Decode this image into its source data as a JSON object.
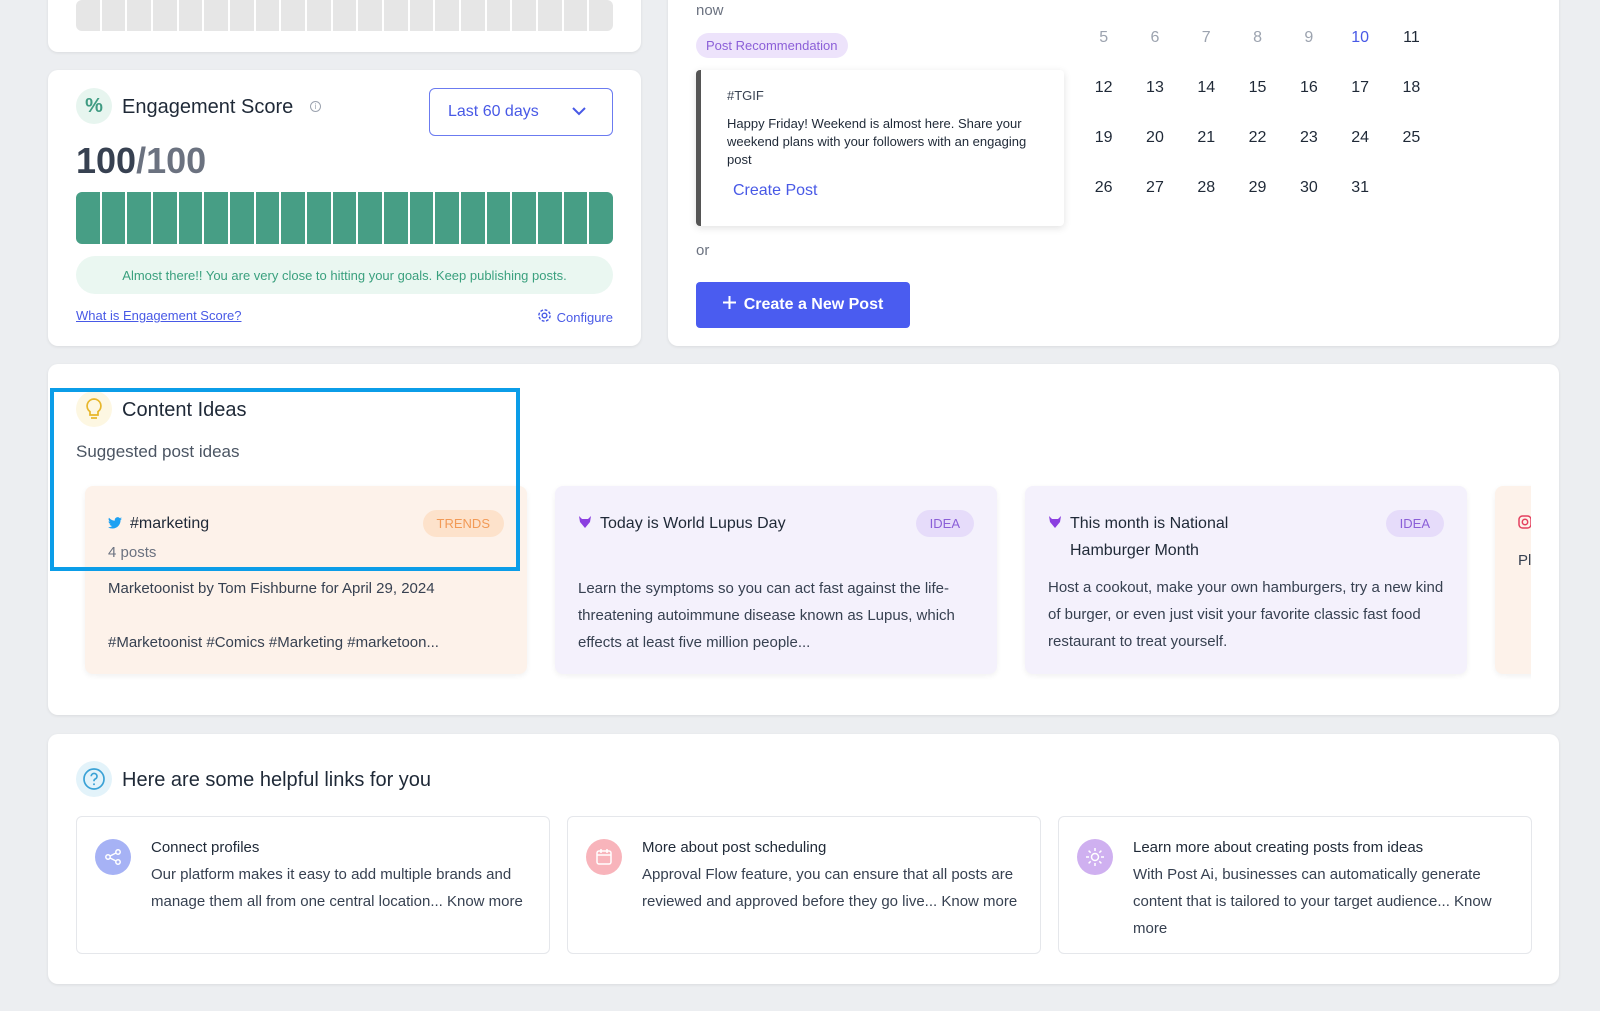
{
  "engagement": {
    "title": "Engagement Score",
    "range": "Last 60 days",
    "score": "100",
    "max": "/100",
    "progress_fraction": 1.0,
    "message": "Almost there!! You are very close to hitting your goals. Keep publishing posts.",
    "link": "What is Engagement Score?",
    "configure": "Configure"
  },
  "recommendation": {
    "time": "now",
    "badge": "Post Recommendation",
    "tag": "#TGIF",
    "text": "Happy Friday! Weekend is almost here. Share your weekend plans with your followers with an engaging post",
    "create": "Create Post",
    "or": "or",
    "new_post": "Create a New Post"
  },
  "calendar": {
    "today": "10",
    "days": [
      "5",
      "6",
      "7",
      "8",
      "9",
      "10",
      "11",
      "12",
      "13",
      "14",
      "15",
      "16",
      "17",
      "18",
      "19",
      "20",
      "21",
      "22",
      "23",
      "24",
      "25",
      "26",
      "27",
      "28",
      "29",
      "30",
      "31"
    ]
  },
  "content_ideas": {
    "title": "Content Ideas",
    "subtitle": "Suggested post ideas",
    "cards": [
      {
        "title": "#marketing",
        "meta": "4 posts",
        "badge": "TRENDS",
        "body1": "Marketoonist by Tom Fishburne for April 29, 2024",
        "body2": "#Marketoonist #Comics #Marketing #marketoon..."
      },
      {
        "title": "Today is World Lupus Day",
        "badge": "IDEA",
        "body": "Learn the symptoms so you can act fast against the life-threatening autoimmune disease known as Lupus, which effects at least five million people..."
      },
      {
        "title": "This month is National Hamburger Month",
        "badge": "IDEA",
        "body": "Host a cookout, make your own hamburgers, try a new kind of burger, or even just visit your favorite classic fast food restaurant to treat yourself."
      },
      {
        "text": "Pl"
      }
    ]
  },
  "helpful_links": {
    "title": "Here are some helpful links for you",
    "items": [
      {
        "title": "Connect profiles",
        "body": "Our platform makes it easy to add multiple brands and manage them all from one central location... Know more"
      },
      {
        "title": "More about post scheduling",
        "body": "Approval Flow feature, you can ensure that all posts are reviewed and approved before they go live... Know more"
      },
      {
        "title": "Learn more about creating posts from ideas",
        "body": "With Post Ai, businesses can automatically generate content that is tailored to your target audience... Know more"
      }
    ]
  },
  "icons": {
    "engagement": "percent-icon",
    "ideas": "lightbulb-icon",
    "help": "question-circle-icon"
  },
  "colors": {
    "accent": "#4a5cf0",
    "score_bar": "#479e85",
    "highlight": "#0b9de8"
  }
}
